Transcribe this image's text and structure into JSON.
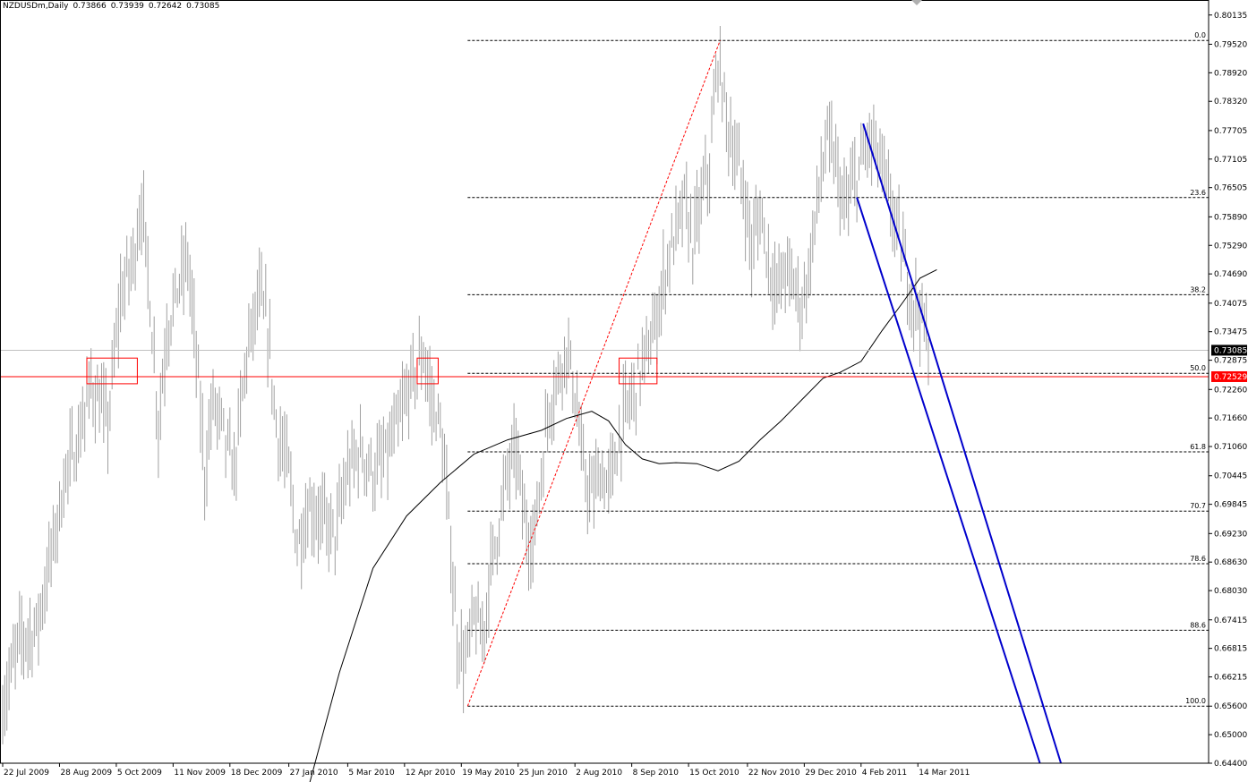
{
  "header": {
    "symbol": "NZDUSDm,Daily",
    "open": "0.73866",
    "high": "0.73939",
    "low": "0.72642",
    "close": "0.73085"
  },
  "colors": {
    "background": "#ffffff",
    "bars": "#a0a0a0",
    "grid_dots": "#000000",
    "ma": "#000000",
    "channel": "#0000cc",
    "fib_trend": "#ff0000",
    "support": "#ff0000",
    "price_line": "#c0c0c0",
    "price_label_bg": "#000000",
    "support_label_bg": "#ff0000"
  },
  "chart_data": {
    "type": "candlestick",
    "instrument": "NZDUSDm",
    "timeframe": "Daily",
    "ylim": [
      0.644,
      0.803
    ],
    "y_ticks": [
      "0.80135",
      "0.79520",
      "0.78920",
      "0.78320",
      "0.77705",
      "0.77105",
      "0.76505",
      "0.75890",
      "0.75290",
      "0.74690",
      "0.74075",
      "0.73475",
      "0.72875",
      "0.72260",
      "0.71660",
      "0.71060",
      "0.70445",
      "0.69845",
      "0.69230",
      "0.68630",
      "0.68030",
      "0.67415",
      "0.66815",
      "0.66215",
      "0.65600",
      "0.65000",
      "0.64400"
    ],
    "x_ticks": [
      {
        "label": "22 Jul 2009",
        "i": 0
      },
      {
        "label": "28 Aug 2009",
        "i": 27
      },
      {
        "label": "5 Oct 2009",
        "i": 54
      },
      {
        "label": "11 Nov 2009",
        "i": 81
      },
      {
        "label": "18 Dec 2009",
        "i": 108
      },
      {
        "label": "27 Jan 2010",
        "i": 136
      },
      {
        "label": "5 Mar 2010",
        "i": 164
      },
      {
        "label": "12 Apr 2010",
        "i": 191
      },
      {
        "label": "19 May 2010",
        "i": 218
      },
      {
        "label": "25 Jun 2010",
        "i": 245
      },
      {
        "label": "2 Aug 2010",
        "i": 272
      },
      {
        "label": "8 Sep 2010",
        "i": 299
      },
      {
        "label": "15 Oct 2010",
        "i": 326
      },
      {
        "label": "22 Nov 2010",
        "i": 354
      },
      {
        "label": "29 Dec 2010",
        "i": 381
      },
      {
        "label": "4 Feb 2011",
        "i": 408
      },
      {
        "label": "14 Mar 2011",
        "i": 435
      }
    ],
    "bars_total": 441,
    "anchors": [
      [
        0,
        0.656
      ],
      [
        8,
        0.67
      ],
      [
        16,
        0.672
      ],
      [
        24,
        0.69
      ],
      [
        30,
        0.705
      ],
      [
        36,
        0.712
      ],
      [
        42,
        0.724
      ],
      [
        50,
        0.715
      ],
      [
        56,
        0.742
      ],
      [
        62,
        0.75
      ],
      [
        66,
        0.762
      ],
      [
        70,
        0.742
      ],
      [
        74,
        0.715
      ],
      [
        78,
        0.735
      ],
      [
        84,
        0.745
      ],
      [
        88,
        0.75
      ],
      [
        92,
        0.73
      ],
      [
        96,
        0.705
      ],
      [
        100,
        0.72
      ],
      [
        104,
        0.715
      ],
      [
        110,
        0.705
      ],
      [
        116,
        0.73
      ],
      [
        122,
        0.742
      ],
      [
        126,
        0.735
      ],
      [
        130,
        0.715
      ],
      [
        136,
        0.705
      ],
      [
        140,
        0.69
      ],
      [
        146,
        0.698
      ],
      [
        152,
        0.695
      ],
      [
        158,
        0.692
      ],
      [
        164,
        0.705
      ],
      [
        170,
        0.71
      ],
      [
        176,
        0.705
      ],
      [
        182,
        0.708
      ],
      [
        188,
        0.715
      ],
      [
        194,
        0.724
      ],
      [
        200,
        0.73
      ],
      [
        204,
        0.72
      ],
      [
        208,
        0.715
      ],
      [
        212,
        0.695
      ],
      [
        216,
        0.67
      ],
      [
        220,
        0.665
      ],
      [
        224,
        0.675
      ],
      [
        228,
        0.67
      ],
      [
        232,
        0.685
      ],
      [
        236,
        0.695
      ],
      [
        240,
        0.705
      ],
      [
        244,
        0.71
      ],
      [
        248,
        0.695
      ],
      [
        252,
        0.69
      ],
      [
        256,
        0.705
      ],
      [
        260,
        0.72
      ],
      [
        264,
        0.725
      ],
      [
        268,
        0.732
      ],
      [
        272,
        0.722
      ],
      [
        276,
        0.705
      ],
      [
        280,
        0.7
      ],
      [
        284,
        0.705
      ],
      [
        288,
        0.702
      ],
      [
        292,
        0.71
      ],
      [
        296,
        0.718
      ],
      [
        300,
        0.722
      ],
      [
        304,
        0.728
      ],
      [
        308,
        0.732
      ],
      [
        312,
        0.74
      ],
      [
        316,
        0.75
      ],
      [
        320,
        0.755
      ],
      [
        324,
        0.762
      ],
      [
        328,
        0.753
      ],
      [
        332,
        0.762
      ],
      [
        336,
        0.77
      ],
      [
        340,
        0.792
      ],
      [
        344,
        0.78
      ],
      [
        348,
        0.772
      ],
      [
        352,
        0.765
      ],
      [
        356,
        0.752
      ],
      [
        360,
        0.76
      ],
      [
        364,
        0.75
      ],
      [
        368,
        0.743
      ],
      [
        372,
        0.748
      ],
      [
        376,
        0.745
      ],
      [
        380,
        0.74
      ],
      [
        384,
        0.75
      ],
      [
        388,
        0.765
      ],
      [
        392,
        0.775
      ],
      [
        396,
        0.77
      ],
      [
        400,
        0.76
      ],
      [
        404,
        0.765
      ],
      [
        408,
        0.77
      ],
      [
        412,
        0.775
      ],
      [
        416,
        0.772
      ],
      [
        420,
        0.765
      ],
      [
        424,
        0.758
      ],
      [
        428,
        0.75
      ],
      [
        432,
        0.742
      ],
      [
        436,
        0.74
      ],
      [
        440,
        0.7309
      ]
    ],
    "moving_average": {
      "name": "MA",
      "points": [
        [
          146,
          0.64
        ],
        [
          160,
          0.663
        ],
        [
          176,
          0.685
        ],
        [
          192,
          0.696
        ],
        [
          208,
          0.703
        ],
        [
          224,
          0.709
        ],
        [
          240,
          0.712
        ],
        [
          256,
          0.714
        ],
        [
          268,
          0.7165
        ],
        [
          280,
          0.718
        ],
        [
          288,
          0.716
        ],
        [
          296,
          0.711
        ],
        [
          304,
          0.708
        ],
        [
          312,
          0.707
        ],
        [
          320,
          0.7072
        ],
        [
          330,
          0.707
        ],
        [
          340,
          0.7055
        ],
        [
          350,
          0.7075
        ],
        [
          360,
          0.712
        ],
        [
          370,
          0.716
        ],
        [
          380,
          0.7205
        ],
        [
          390,
          0.725
        ],
        [
          398,
          0.7262
        ],
        [
          408,
          0.7285
        ],
        [
          418,
          0.735
        ],
        [
          428,
          0.741
        ],
        [
          436,
          0.746
        ],
        [
          444,
          0.7478
        ]
      ]
    },
    "fibonacci": {
      "high": 0.796,
      "low": 0.656,
      "levels": [
        {
          "label": "0.0",
          "ratio": 0.0
        },
        {
          "label": "23.6",
          "ratio": 0.236
        },
        {
          "label": "38.2",
          "ratio": 0.382
        },
        {
          "label": "50.0",
          "ratio": 0.5
        },
        {
          "label": "61.8",
          "ratio": 0.618
        },
        {
          "label": "70.7",
          "ratio": 0.707
        },
        {
          "label": "78.6",
          "ratio": 0.786
        },
        {
          "label": "88.6",
          "ratio": 0.886
        },
        {
          "label": "100.0",
          "ratio": 1.0
        }
      ]
    },
    "current_price": {
      "value": 0.73085,
      "label": "0.73085"
    },
    "support_level": {
      "value": 0.72529,
      "label": "0.72529"
    }
  }
}
